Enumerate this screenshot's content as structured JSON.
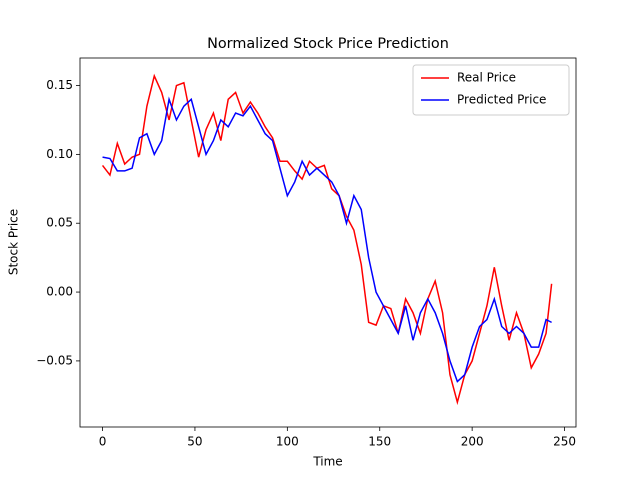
{
  "chart_data": {
    "type": "line",
    "title": "Normalized Stock Price Prediction",
    "x_label": "Time",
    "y_label": "Stock Price",
    "x": [
      0,
      4,
      8,
      12,
      16,
      20,
      24,
      28,
      32,
      36,
      40,
      44,
      48,
      52,
      56,
      60,
      64,
      68,
      72,
      76,
      80,
      84,
      88,
      92,
      96,
      100,
      104,
      108,
      112,
      116,
      120,
      124,
      128,
      132,
      136,
      140,
      144,
      148,
      152,
      156,
      160,
      164,
      168,
      172,
      176,
      180,
      184,
      188,
      192,
      196,
      200,
      204,
      208,
      212,
      216,
      220,
      224,
      228,
      232,
      236,
      240,
      243
    ],
    "series": [
      {
        "name": "Real Price",
        "color": "#ff0000",
        "values": [
          0.092,
          0.085,
          0.108,
          0.093,
          0.098,
          0.1,
          0.135,
          0.157,
          0.145,
          0.125,
          0.15,
          0.152,
          0.125,
          0.098,
          0.118,
          0.13,
          0.11,
          0.14,
          0.145,
          0.13,
          0.138,
          0.13,
          0.12,
          0.112,
          0.095,
          0.095,
          0.088,
          0.082,
          0.095,
          0.09,
          0.092,
          0.075,
          0.07,
          0.055,
          0.045,
          0.02,
          -0.022,
          -0.024,
          -0.01,
          -0.012,
          -0.03,
          -0.005,
          -0.015,
          -0.03,
          -0.005,
          0.008,
          -0.015,
          -0.06,
          -0.08,
          -0.06,
          -0.05,
          -0.03,
          -0.01,
          0.018,
          -0.01,
          -0.035,
          -0.015,
          -0.03,
          -0.055,
          -0.045,
          -0.03,
          0.006
        ]
      },
      {
        "name": "Predicted Price",
        "color": "#0000ff",
        "values": [
          0.098,
          0.097,
          0.088,
          0.088,
          0.09,
          0.112,
          0.115,
          0.1,
          0.11,
          0.14,
          0.125,
          0.135,
          0.14,
          0.12,
          0.1,
          0.11,
          0.125,
          0.12,
          0.13,
          0.128,
          0.135,
          0.125,
          0.115,
          0.11,
          0.09,
          0.07,
          0.08,
          0.095,
          0.085,
          0.09,
          0.085,
          0.08,
          0.07,
          0.05,
          0.07,
          0.06,
          0.025,
          0.0,
          -0.01,
          -0.02,
          -0.03,
          -0.01,
          -0.035,
          -0.015,
          -0.005,
          -0.015,
          -0.03,
          -0.05,
          -0.065,
          -0.06,
          -0.04,
          -0.025,
          -0.02,
          -0.005,
          -0.025,
          -0.03,
          -0.025,
          -0.03,
          -0.04,
          -0.04,
          -0.02,
          -0.022
        ]
      }
    ],
    "xlim": [
      -12.2,
      256.2
    ],
    "ylim": [
      -0.098,
      0.17
    ],
    "xticks": [
      0,
      50,
      100,
      150,
      200,
      250
    ],
    "yticks": [
      {
        "value": -0.05,
        "label": "−0.05"
      },
      {
        "value": 0,
        "label": "0.00"
      },
      0.05,
      {
        "value": 0.1,
        "label": "0.10"
      },
      0.15
    ],
    "legend": "upper right"
  }
}
